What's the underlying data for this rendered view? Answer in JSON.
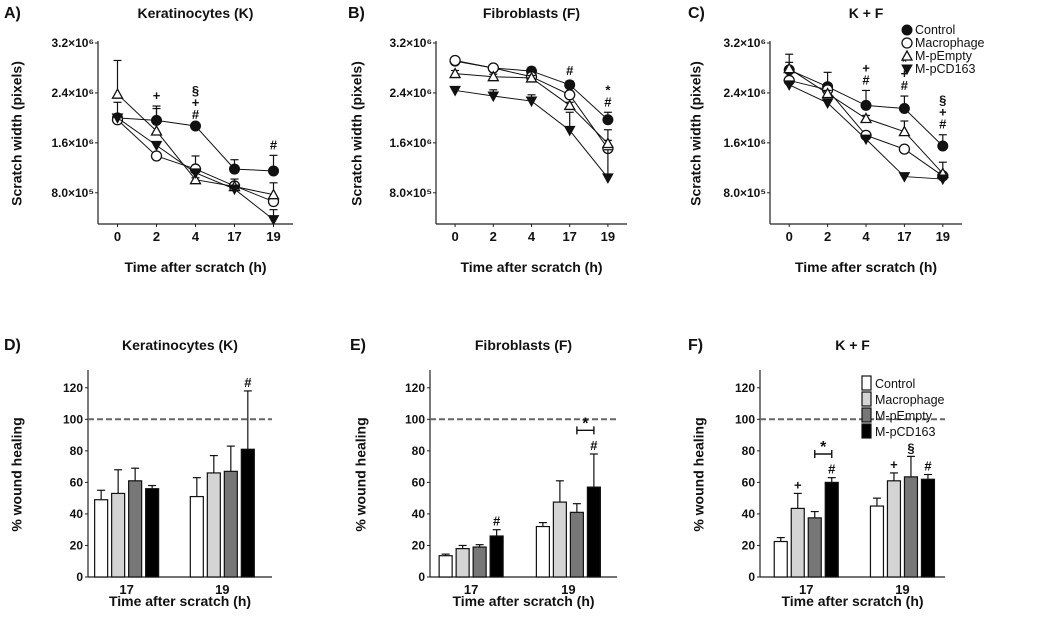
{
  "chart_data": [
    {
      "type": "line",
      "panel": "A)",
      "title": "Keratinocytes (K)",
      "xlabel": "Time after scratch (h)",
      "ylabel": "Scratch width (pixels)",
      "x_categories": [
        "0",
        "2",
        "4",
        "17",
        "19"
      ],
      "ylim": [
        300000,
        3200000
      ],
      "yticks": [
        {
          "value": 800000,
          "label": "8.0×10⁵"
        },
        {
          "value": 1600000,
          "label": "1.6×10⁶"
        },
        {
          "value": 2400000,
          "label": "2.4×10⁶"
        },
        {
          "value": 3200000,
          "label": "3.2×10⁶"
        }
      ],
      "series": [
        {
          "name": "Control",
          "marker": "circle-filled",
          "values": [
            2000000.0,
            1960000.0,
            1870000.0,
            1180000.0,
            1150000.0
          ],
          "errors": [
            250000.0,
            230000.0,
            20000.0,
            150000.0,
            250000.0
          ]
        },
        {
          "name": "Macrophage",
          "marker": "circle-open",
          "values": [
            1970000.0,
            1390000.0,
            1180000.0,
            910000.0,
            660000.0
          ],
          "errors": [
            30000.0,
            30000.0,
            210000.0,
            50000.0,
            50000.0
          ]
        },
        {
          "name": "M-pEmpty",
          "marker": "triangle-open",
          "values": [
            2380000.0,
            1790000.0,
            1010000.0,
            900000.0,
            770000.0
          ],
          "errors": [
            540000.0,
            360000.0,
            30000.0,
            120000.0,
            190000.0
          ]
        },
        {
          "name": "M-pCD163",
          "marker": "triangle-down-filled",
          "values": [
            2000000.0,
            1560000.0,
            1120000.0,
            860000.0,
            370000.0
          ],
          "errors": [
            30000.0,
            30000.0,
            30000.0,
            30000.0,
            160000.0
          ]
        }
      ],
      "annotations": [
        {
          "x": "2",
          "labels": [
            "+"
          ]
        },
        {
          "x": "4",
          "labels": [
            "§",
            "+",
            "#"
          ]
        },
        {
          "x": "19",
          "labels": [
            "#"
          ]
        }
      ]
    },
    {
      "type": "line",
      "panel": "B)",
      "title": "Fibroblasts (F)",
      "xlabel": "Time after scratch (h)",
      "ylabel": "Scratch width (pixels)",
      "x_categories": [
        "0",
        "2",
        "4",
        "17",
        "19"
      ],
      "ylim": [
        300000,
        3200000
      ],
      "yticks": [
        {
          "value": 800000,
          "label": "8.0×10⁵"
        },
        {
          "value": 1600000,
          "label": "1.6×10⁶"
        },
        {
          "value": 2400000,
          "label": "2.4×10⁶"
        },
        {
          "value": 3200000,
          "label": "3.2×10⁶"
        }
      ],
      "series": [
        {
          "name": "Control",
          "marker": "circle-filled",
          "values": [
            2910000.0,
            2800000.0,
            2750000.0,
            2530000.0,
            1970000.0
          ],
          "errors": [
            50000.0,
            50000.0,
            60000.0,
            60000.0,
            120000.0
          ]
        },
        {
          "name": "Macrophage",
          "marker": "circle-open",
          "values": [
            2920000.0,
            2800000.0,
            2660000.0,
            2370000.0,
            1510000.0
          ],
          "errors": [
            40000.0,
            50000.0,
            50000.0,
            50000.0,
            300000.0
          ]
        },
        {
          "name": "M-pEmpty",
          "marker": "triangle-open",
          "values": [
            2710000.0,
            2660000.0,
            2640000.0,
            2200000.0,
            1590000.0
          ],
          "errors": [
            50000.0,
            40000.0,
            40000.0,
            50000.0,
            50000.0
          ]
        },
        {
          "name": "M-pCD163",
          "marker": "triangle-down-filled",
          "values": [
            2440000.0,
            2350000.0,
            2270000.0,
            1800000.0,
            1040000.0
          ],
          "errors": [
            30000.0,
            100000.0,
            100000.0,
            290000.0,
            450000.0
          ]
        }
      ],
      "annotations": [
        {
          "x": "17",
          "labels": [
            "#"
          ]
        },
        {
          "x": "19",
          "labels": [
            "*",
            "#"
          ]
        }
      ]
    },
    {
      "type": "line",
      "panel": "C)",
      "title": "K + F",
      "xlabel": "Time after scratch (h)",
      "ylabel": "Scratch width (pixels)",
      "x_categories": [
        "0",
        "2",
        "4",
        "17",
        "19"
      ],
      "ylim": [
        300000,
        3200000
      ],
      "yticks": [
        {
          "value": 800000,
          "label": "8.0×10⁵"
        },
        {
          "value": 1600000,
          "label": "1.6×10⁶"
        },
        {
          "value": 2400000,
          "label": "2.4×10⁶"
        },
        {
          "value": 3200000,
          "label": "3.2×10⁶"
        }
      ],
      "legend": "right",
      "series": [
        {
          "name": "Control",
          "marker": "circle-filled",
          "values": [
            2770000.0,
            2500000.0,
            2200000.0,
            2150000.0,
            1550000.0
          ],
          "errors": [
            250000.0,
            230000.0,
            240000.0,
            200000.0,
            180000.0
          ]
        },
        {
          "name": "Macrophage",
          "marker": "circle-open",
          "values": [
            2600000.0,
            2450000.0,
            1720000.0,
            1500000.0,
            1070000.0
          ],
          "errors": [
            40000.0,
            40000.0,
            40000.0,
            40000.0,
            40000.0
          ]
        },
        {
          "name": "M-pEmpty",
          "marker": "triangle-open",
          "values": [
            2790000.0,
            2390000.0,
            1990000.0,
            1780000.0,
            1110000.0
          ],
          "errors": [
            100000.0,
            50000.0,
            50000.0,
            170000.0,
            180000.0
          ]
        },
        {
          "name": "M-pCD163",
          "marker": "triangle-down-filled",
          "values": [
            2530000.0,
            2240000.0,
            1660000.0,
            1060000.0,
            1020000.0
          ],
          "errors": [
            30000.0,
            30000.0,
            30000.0,
            20000.0,
            20000.0
          ]
        }
      ],
      "annotations": [
        {
          "x": "4",
          "labels": [
            "+",
            "#"
          ]
        },
        {
          "x": "17",
          "labels": [
            "*",
            "+",
            "#"
          ]
        },
        {
          "x": "19",
          "labels": [
            "§",
            "+",
            "#"
          ]
        }
      ]
    },
    {
      "type": "bar",
      "panel": "D)",
      "title": "Keratinocytes (K)",
      "xlabel": "Time after scratch (h)",
      "ylabel": "% wound healing",
      "categories": [
        "17",
        "19"
      ],
      "ylim": [
        0,
        130
      ],
      "yticks": [
        0,
        20,
        40,
        60,
        80,
        100,
        120
      ],
      "reference_line": 100,
      "series": [
        {
          "name": "Control",
          "color": "#ffffff",
          "values": [
            49,
            51
          ],
          "error_tops": [
            55,
            63
          ]
        },
        {
          "name": "Macrophage",
          "color": "#d4d4d4",
          "values": [
            53,
            66
          ],
          "error_tops": [
            68,
            77
          ]
        },
        {
          "name": "M-pEmpty",
          "color": "#777777",
          "values": [
            61,
            67
          ],
          "error_tops": [
            69,
            83
          ]
        },
        {
          "name": "M-pCD163",
          "color": "#000000",
          "values": [
            56,
            81
          ],
          "error_tops": [
            58,
            118
          ]
        }
      ],
      "annotations": [
        {
          "category": "19",
          "series": 3,
          "label": "#"
        }
      ],
      "brackets": []
    },
    {
      "type": "bar",
      "panel": "E)",
      "title": "Fibroblasts (F)",
      "xlabel": "Time after scratch (h)",
      "ylabel": "% wound healing",
      "categories": [
        "17",
        "19"
      ],
      "ylim": [
        0,
        130
      ],
      "yticks": [
        0,
        20,
        40,
        60,
        80,
        100,
        120
      ],
      "reference_line": 100,
      "series": [
        {
          "name": "Control",
          "color": "#ffffff",
          "values": [
            13.5,
            32
          ],
          "error_tops": [
            14.5,
            34.5
          ]
        },
        {
          "name": "Macrophage",
          "color": "#d4d4d4",
          "values": [
            18,
            47.5
          ],
          "error_tops": [
            20,
            61
          ]
        },
        {
          "name": "M-pEmpty",
          "color": "#777777",
          "values": [
            19,
            41
          ],
          "error_tops": [
            20.5,
            46.5
          ]
        },
        {
          "name": "M-pCD163",
          "color": "#000000",
          "values": [
            26,
            57
          ],
          "error_tops": [
            30,
            78
          ]
        }
      ],
      "annotations": [
        {
          "category": "17",
          "series": 3,
          "label": "#"
        },
        {
          "category": "19",
          "series": 3,
          "label": "#"
        }
      ],
      "brackets": [
        {
          "category": "19",
          "from": 2,
          "to": 3,
          "level": 93,
          "label": "*"
        }
      ]
    },
    {
      "type": "bar",
      "panel": "F)",
      "title": "K + F",
      "xlabel": "Time after scratch (h)",
      "ylabel": "% wound healing",
      "categories": [
        "17",
        "19"
      ],
      "ylim": [
        0,
        130
      ],
      "yticks": [
        0,
        20,
        40,
        60,
        80,
        100,
        120
      ],
      "reference_line": 100,
      "legend": "right",
      "series": [
        {
          "name": "Control",
          "color": "#ffffff",
          "values": [
            22.5,
            45
          ],
          "error_tops": [
            25,
            50
          ]
        },
        {
          "name": "Macrophage",
          "color": "#d4d4d4",
          "values": [
            43.5,
            61
          ],
          "error_tops": [
            53,
            66
          ]
        },
        {
          "name": "M-pEmpty",
          "color": "#777777",
          "values": [
            37.5,
            63.5
          ],
          "error_tops": [
            41.5,
            76.5
          ]
        },
        {
          "name": "M-pCD163",
          "color": "#000000",
          "values": [
            60,
            62
          ],
          "error_tops": [
            63,
            65
          ]
        }
      ],
      "annotations": [
        {
          "category": "17",
          "series": 1,
          "label": "+"
        },
        {
          "category": "17",
          "series": 3,
          "label": "#"
        },
        {
          "category": "19",
          "series": 1,
          "label": "+"
        },
        {
          "category": "19",
          "series": 2,
          "label": "§"
        },
        {
          "category": "19",
          "series": 3,
          "label": "#"
        }
      ],
      "brackets": [
        {
          "category": "17",
          "from": 2,
          "to": 3,
          "level": 78,
          "label": "*"
        }
      ]
    }
  ]
}
